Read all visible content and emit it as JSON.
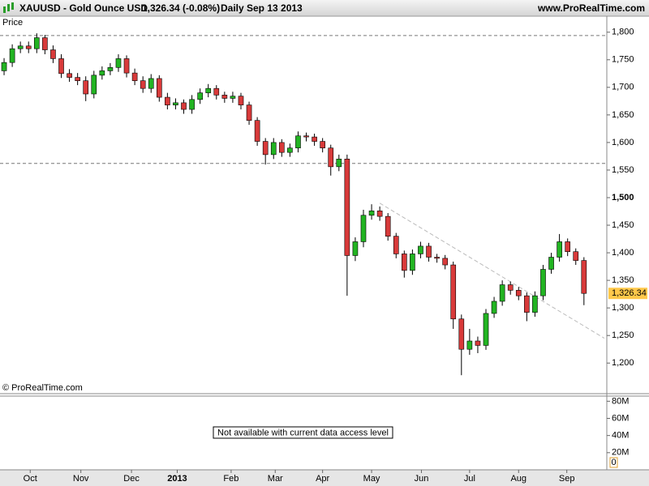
{
  "header": {
    "symbol": "XAUUSD - Gold Ounce USD",
    "quote": "1,326.34 (-0.08%)",
    "period": "Daily",
    "date": "Sep 13 2013",
    "site": "www.ProRealTime.com"
  },
  "watermark": "© ProRealTime.com",
  "chart_data": [
    {
      "type": "candlestick",
      "y_label": "Price",
      "up_color": "#22b422",
      "down_color": "#d83a3a",
      "open": [
        1730,
        1745,
        1770,
        1775,
        1770,
        1790,
        1768,
        1752,
        1725,
        1718,
        1712,
        1688,
        1722,
        1730,
        1736,
        1752,
        1726,
        1712,
        1698,
        1716,
        1682,
        1668,
        1672,
        1660,
        1678,
        1690,
        1698,
        1686,
        1680,
        1684,
        1668,
        1640,
        1602,
        1578,
        1600,
        1582,
        1590,
        1612,
        1610,
        1602,
        1590,
        1556,
        1570,
        1395,
        1420,
        1468,
        1476,
        1466,
        1430,
        1398,
        1368,
        1398,
        1412,
        1392,
        1390,
        1378,
        1280,
        1225,
        1240,
        1232,
        1290,
        1312,
        1342,
        1332,
        1322,
        1292,
        1322,
        1370,
        1392,
        1420,
        1402,
        1386
      ],
      "high": [
        1753,
        1778,
        1783,
        1783,
        1798,
        1795,
        1776,
        1760,
        1733,
        1726,
        1720,
        1730,
        1738,
        1744,
        1760,
        1758,
        1734,
        1720,
        1724,
        1722,
        1690,
        1680,
        1678,
        1686,
        1698,
        1706,
        1704,
        1692,
        1692,
        1690,
        1674,
        1646,
        1608,
        1608,
        1606,
        1598,
        1620,
        1618,
        1616,
        1608,
        1596,
        1578,
        1578,
        1428,
        1478,
        1488,
        1484,
        1472,
        1436,
        1404,
        1406,
        1420,
        1418,
        1398,
        1396,
        1384,
        1288,
        1262,
        1248,
        1298,
        1320,
        1350,
        1348,
        1338,
        1328,
        1330,
        1378,
        1400,
        1434,
        1426,
        1408,
        1392
      ],
      "low": [
        1722,
        1737,
        1762,
        1762,
        1762,
        1760,
        1744,
        1717,
        1710,
        1704,
        1675,
        1680,
        1714,
        1722,
        1728,
        1718,
        1704,
        1690,
        1690,
        1674,
        1660,
        1660,
        1652,
        1652,
        1670,
        1682,
        1678,
        1672,
        1672,
        1660,
        1632,
        1594,
        1560,
        1570,
        1574,
        1574,
        1582,
        1602,
        1594,
        1582,
        1540,
        1548,
        1322,
        1385,
        1410,
        1460,
        1458,
        1422,
        1390,
        1355,
        1360,
        1390,
        1384,
        1382,
        1370,
        1262,
        1178,
        1215,
        1218,
        1224,
        1282,
        1304,
        1324,
        1314,
        1276,
        1284,
        1314,
        1362,
        1384,
        1394,
        1378,
        1305
      ],
      "close": [
        1745,
        1770,
        1775,
        1770,
        1790,
        1768,
        1752,
        1725,
        1718,
        1712,
        1688,
        1722,
        1730,
        1736,
        1752,
        1726,
        1712,
        1698,
        1716,
        1682,
        1668,
        1672,
        1660,
        1678,
        1690,
        1698,
        1686,
        1680,
        1684,
        1668,
        1640,
        1602,
        1578,
        1600,
        1582,
        1590,
        1612,
        1610,
        1602,
        1590,
        1556,
        1570,
        1395,
        1420,
        1468,
        1476,
        1466,
        1430,
        1398,
        1368,
        1398,
        1412,
        1392,
        1390,
        1378,
        1280,
        1225,
        1240,
        1232,
        1290,
        1312,
        1342,
        1332,
        1322,
        1292,
        1322,
        1370,
        1392,
        1420,
        1402,
        1386,
        1326.34
      ],
      "xlim": [
        -0.5,
        73.8
      ],
      "xticks": [
        {
          "value": 3.2,
          "label": "Oct"
        },
        {
          "value": 9.4,
          "label": "Nov"
        },
        {
          "value": 15.6,
          "label": "Dec"
        },
        {
          "value": 21.2,
          "label": "2013"
        },
        {
          "value": 27.8,
          "label": "Feb"
        },
        {
          "value": 33.2,
          "label": "Mar"
        },
        {
          "value": 39,
          "label": "Apr"
        },
        {
          "value": 45,
          "label": "May"
        },
        {
          "value": 51.1,
          "label": "Jun"
        },
        {
          "value": 57,
          "label": "Jul"
        },
        {
          "value": 63,
          "label": "Aug"
        },
        {
          "value": 68.9,
          "label": "Sep"
        }
      ],
      "ylim": [
        1146,
        1829
      ],
      "yticks": [
        {
          "value": 1200,
          "label": "1,200"
        },
        {
          "value": 1250,
          "label": "1,250"
        },
        {
          "value": 1300,
          "label": "1,300"
        },
        {
          "value": 1350,
          "label": "1,350"
        },
        {
          "value": 1400,
          "label": "1,400"
        },
        {
          "value": 1450,
          "label": "1,450"
        },
        {
          "value": 1500,
          "label": "1,500"
        },
        {
          "value": 1550,
          "label": "1,550"
        },
        {
          "value": 1600,
          "label": "1,600"
        },
        {
          "value": 1650,
          "label": "1,650"
        },
        {
          "value": 1700,
          "label": "1,700"
        },
        {
          "value": 1750,
          "label": "1,750"
        },
        {
          "value": 1800,
          "label": "1,800"
        }
      ],
      "reference_lines": [
        1794,
        1562
      ],
      "trendline": {
        "x": [
          46,
          73.5
        ],
        "y": [
          1490,
          1245
        ]
      },
      "current_price": {
        "value": 1326.34,
        "label": "1,326.34"
      }
    },
    {
      "type": "volume",
      "message": "Not available with current data access level",
      "ylim": [
        0,
        86000000
      ],
      "yticks": [
        {
          "value": 20000000,
          "label": "20M"
        },
        {
          "value": 40000000,
          "label": "40M"
        },
        {
          "value": 60000000,
          "label": "60M"
        },
        {
          "value": 80000000,
          "label": "80M"
        }
      ],
      "current": {
        "value": 0,
        "label": "0"
      }
    }
  ]
}
